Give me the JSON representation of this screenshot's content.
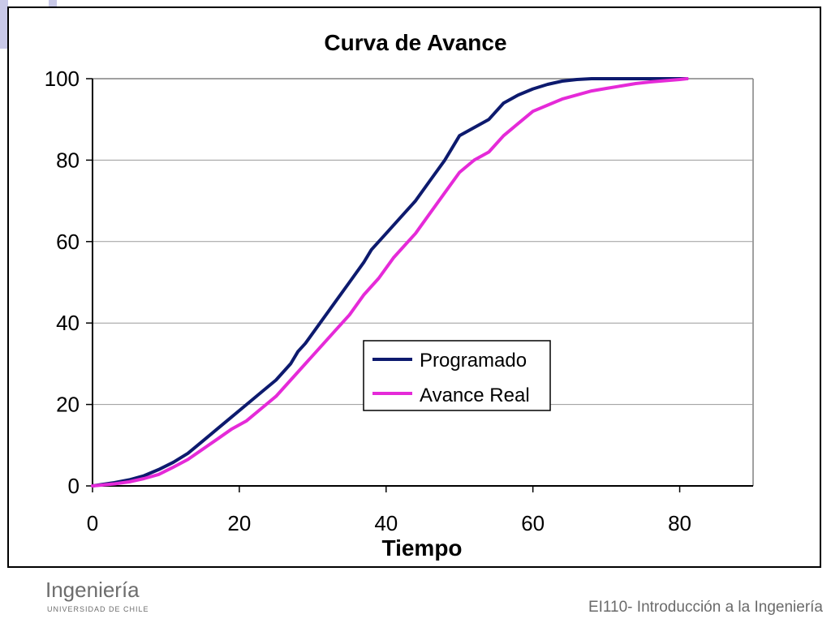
{
  "chart_data": {
    "type": "line",
    "title": "Curva de Avance",
    "xlabel": "Tiempo",
    "ylabel": "",
    "xlim": [
      0,
      90
    ],
    "ylim": [
      0,
      100
    ],
    "xticks": [
      0,
      20,
      40,
      60,
      80
    ],
    "yticks": [
      0,
      20,
      40,
      60,
      80,
      100
    ],
    "grid": "horizontal",
    "legend_position": "center-right",
    "series": [
      {
        "name": "Programado",
        "color": "#0d1a6e",
        "x": [
          0,
          3,
          5,
          7,
          9,
          11,
          13,
          15,
          17,
          19,
          21,
          23,
          25,
          27,
          28,
          29,
          31,
          33,
          35,
          37,
          38,
          40,
          42,
          44,
          46,
          48,
          49,
          50,
          52,
          54,
          56,
          58,
          60,
          62,
          64,
          66,
          68,
          70,
          72,
          74,
          76,
          78,
          80,
          81
        ],
        "y": [
          0,
          0.8,
          1.5,
          2.5,
          4,
          5.8,
          8,
          11,
          14,
          17,
          20,
          23,
          26,
          30,
          33,
          35,
          40,
          45,
          50,
          55,
          58,
          62,
          66,
          70,
          75,
          80,
          83,
          86,
          88,
          90,
          94,
          96,
          97.5,
          98.6,
          99.4,
          99.8,
          100,
          100,
          100,
          100,
          100,
          100,
          100,
          100
        ]
      },
      {
        "name": "Avance Real",
        "color": "#e52ad8",
        "x": [
          0,
          3,
          5,
          7,
          9,
          11,
          13,
          15,
          17,
          19,
          21,
          23,
          25,
          27,
          29,
          31,
          33,
          35,
          37,
          39,
          41,
          43,
          44,
          46,
          48,
          50,
          52,
          54,
          56,
          58,
          60,
          62,
          64,
          66,
          68,
          70,
          72,
          74,
          76,
          78,
          80,
          81
        ],
        "y": [
          0,
          0.5,
          1,
          1.8,
          2.8,
          4.6,
          6.5,
          9,
          11.5,
          14,
          16,
          19,
          22,
          26,
          30,
          34,
          38,
          42,
          47,
          51,
          56,
          60,
          62,
          67,
          72,
          77,
          80,
          82,
          86,
          89,
          92,
          93.5,
          95,
          96,
          97,
          97.6,
          98.2,
          98.8,
          99.2,
          99.5,
          99.8,
          100
        ]
      }
    ]
  },
  "branding": {
    "logo_text": "Ingeniería",
    "logo_subtext": "UNIVERSIDAD DE CHILE",
    "logo_accent": "#c8102e",
    "footer": "EI110- Introducción a la Ingeniería",
    "accent_color": "#c9c9e8"
  }
}
